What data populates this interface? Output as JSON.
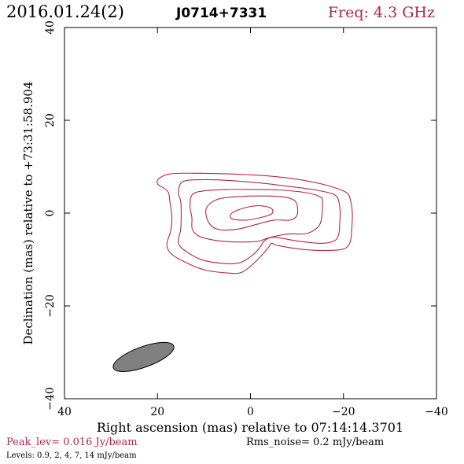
{
  "header": {
    "date": "2016.01.24(2)",
    "source": "J0714+7331",
    "freq": "Freq: 4.3 GHz"
  },
  "footer": {
    "peak": "Peak_lev=  0.016 Jy/beam",
    "rms": "Rms_noise=  0.2 mJy/beam",
    "levels": "Levels: 0.9,   2,   4,   7,  14 mJy/beam"
  },
  "colors": {
    "contour": "#b0284a",
    "accent_text": "#b0284a",
    "beam_fill": "#808080",
    "frame": "#000000"
  },
  "chart_data": {
    "type": "contour",
    "xlabel": "Right ascension (mas) relative to 07:14:14.3701",
    "ylabel": "Declination (mas) relative to +73:31:58.904",
    "xlim": [
      40,
      -40
    ],
    "ylim": [
      -40,
      40
    ],
    "x_ticks": [
      40,
      20,
      0,
      -20,
      -40
    ],
    "y_ticks": [
      -40,
      -20,
      0,
      20,
      40
    ],
    "x_tick_labels": [
      "40",
      "20",
      "0",
      "−20",
      "−40"
    ],
    "y_tick_labels": [
      "−40",
      "−20",
      "0",
      "20",
      "40"
    ],
    "beam": {
      "ra": 23,
      "dec": -31,
      "major": 13.8,
      "minor": 4.4,
      "angle_deg": 160
    },
    "levels_mJy": [
      0.9,
      2,
      4,
      7,
      14
    ],
    "contours": [
      {
        "level": 0.9,
        "points": [
          [
            -21.5,
            2.8
          ],
          [
            -20.5,
            4.5
          ],
          [
            -16,
            6.1
          ],
          [
            -10,
            7.3
          ],
          [
            -4,
            8.0
          ],
          [
            1,
            8.3
          ],
          [
            6,
            8.5
          ],
          [
            12,
            8.6
          ],
          [
            17,
            8.5
          ],
          [
            19.5,
            7.6
          ],
          [
            20,
            6.3
          ],
          [
            17.8,
            4.7
          ],
          [
            17.3,
            2.2
          ],
          [
            16.9,
            -1.0
          ],
          [
            17.2,
            -4.0
          ],
          [
            18,
            -6.8
          ],
          [
            17,
            -8.8
          ],
          [
            14,
            -10.6
          ],
          [
            10,
            -12.2
          ],
          [
            5,
            -12.9
          ],
          [
            2,
            -12.8
          ],
          [
            -0.5,
            -11.0
          ],
          [
            -2.5,
            -9.0
          ],
          [
            -4,
            -7.2
          ],
          [
            -4.6,
            -6.5
          ],
          [
            -6,
            -7.0
          ],
          [
            -12,
            -7.9
          ],
          [
            -18,
            -8.0
          ],
          [
            -20.5,
            -7.5
          ],
          [
            -21.5,
            -6.0
          ],
          [
            -21.8,
            -3.0
          ],
          [
            -21.9,
            0.0
          ],
          [
            -21.5,
            2.8
          ]
        ]
      },
      {
        "level": 2,
        "points": [
          [
            -19,
            2.5
          ],
          [
            -18,
            4.0
          ],
          [
            -14,
            5.0
          ],
          [
            -8,
            5.8
          ],
          [
            -2,
            6.5
          ],
          [
            4,
            7.0
          ],
          [
            10,
            7.2
          ],
          [
            14.5,
            6.8
          ],
          [
            15.5,
            4.5
          ],
          [
            15,
            2.5
          ],
          [
            14.9,
            -0.5
          ],
          [
            15,
            -3.5
          ],
          [
            15.5,
            -6.5
          ],
          [
            13.5,
            -8.5
          ],
          [
            10,
            -10.2
          ],
          [
            5,
            -10.9
          ],
          [
            2,
            -10.6
          ],
          [
            -0.5,
            -9.0
          ],
          [
            -2,
            -7.4
          ],
          [
            -3,
            -6.0
          ],
          [
            -5,
            -5.2
          ],
          [
            -10,
            -6.0
          ],
          [
            -15,
            -6.5
          ],
          [
            -18,
            -6.0
          ],
          [
            -19,
            -4.5
          ],
          [
            -19.2,
            -2.0
          ],
          [
            -19.3,
            0.0
          ],
          [
            -19,
            2.5
          ]
        ]
      },
      {
        "level": 4,
        "points": [
          [
            -15.5,
            2.5
          ],
          [
            -15,
            3.5
          ],
          [
            -12,
            4.4
          ],
          [
            -6,
            5.0
          ],
          [
            0,
            5.1
          ],
          [
            5,
            5.1
          ],
          [
            10,
            4.8
          ],
          [
            12.5,
            4.0
          ],
          [
            13,
            1.5
          ],
          [
            12.6,
            -1.0
          ],
          [
            12.5,
            -3.5
          ],
          [
            11,
            -5.0
          ],
          [
            8,
            -5.8
          ],
          [
            4,
            -6.2
          ],
          [
            0,
            -6.2
          ],
          [
            -2,
            -6.0
          ],
          [
            -4,
            -5.3
          ],
          [
            -8,
            -4.5
          ],
          [
            -12,
            -4.4
          ],
          [
            -14.5,
            -3.0
          ],
          [
            -15.3,
            -1.0
          ],
          [
            -15.5,
            2.5
          ]
        ]
      },
      {
        "level": 7,
        "points": [
          [
            -10,
            1.8
          ],
          [
            -9,
            3.0
          ],
          [
            -6,
            3.6
          ],
          [
            -2,
            3.7
          ],
          [
            2,
            3.6
          ],
          [
            7,
            3.0
          ],
          [
            9.5,
            1.0
          ],
          [
            9,
            -2.0
          ],
          [
            7,
            -3.5
          ],
          [
            3,
            -3.5
          ],
          [
            -1,
            -2.5
          ],
          [
            -5,
            -1.5
          ],
          [
            -8.5,
            -1.5
          ],
          [
            -10,
            -0.5
          ],
          [
            -10,
            1.8
          ]
        ]
      },
      {
        "level": 14,
        "points": [
          [
            -4.5,
            1.0
          ],
          [
            -2,
            1.6
          ],
          [
            1,
            1.2
          ],
          [
            4,
            0.0
          ],
          [
            4,
            -1.2
          ],
          [
            1,
            -1.5
          ],
          [
            -2,
            -1.0
          ],
          [
            -4.5,
            -0.2
          ],
          [
            -4.5,
            1.0
          ]
        ]
      }
    ]
  }
}
